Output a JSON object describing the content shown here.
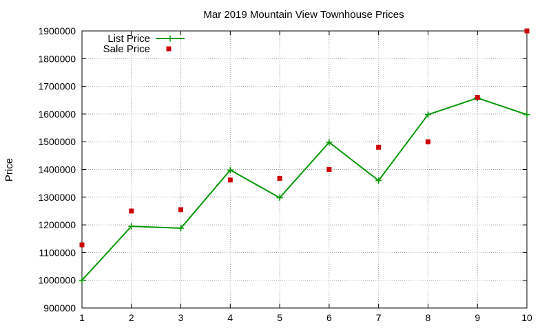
{
  "chart_data": {
    "type": "line",
    "title": "Mar 2019 Mountain View Townhouse Prices",
    "xlabel": "",
    "ylabel": "Price",
    "xlim": [
      1,
      10
    ],
    "ylim": [
      900000,
      1900000
    ],
    "x_ticks": [
      "1",
      "2",
      "3",
      "4",
      "5",
      "6",
      "7",
      "8",
      "9",
      "10"
    ],
    "y_ticks": [
      "900000",
      "1000000",
      "1100000",
      "1200000",
      "1300000",
      "1400000",
      "1500000",
      "1600000",
      "1700000",
      "1800000",
      "1900000"
    ],
    "grid": true,
    "legend_position": "top-left",
    "series": [
      {
        "name": "List Price",
        "style": "line-with-plus-markers",
        "color": "#009900",
        "x": [
          1,
          2,
          3,
          4,
          5,
          6,
          7,
          8,
          9,
          10
        ],
        "values": [
          1000000,
          1195000,
          1188000,
          1398000,
          1298000,
          1498000,
          1360000,
          1598000,
          1658000,
          1598000
        ]
      },
      {
        "name": "Sale Price",
        "style": "square-markers",
        "color": "#cc0000",
        "x": [
          1,
          2,
          3,
          4,
          5,
          6,
          7,
          8,
          9,
          10
        ],
        "values": [
          1128000,
          1250000,
          1255000,
          1362000,
          1368000,
          1400000,
          1480000,
          1500000,
          1660000,
          1900000
        ]
      }
    ]
  }
}
